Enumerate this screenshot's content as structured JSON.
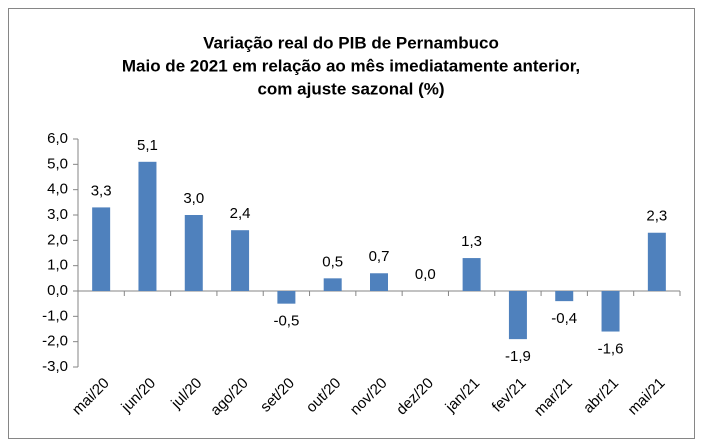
{
  "chart_data": {
    "type": "bar",
    "title": [
      "Variação real do PIB de Pernambuco",
      "Maio de 2021 em relação ao mês imediatamente anterior,",
      "com ajuste sazonal  (%)"
    ],
    "categories": [
      "mai/20",
      "jun/20",
      "jul/20",
      "ago/20",
      "set/20",
      "out/20",
      "nov/20",
      "dez/20",
      "jan/21",
      "fev/21",
      "mar/21",
      "abr/21",
      "mai/21"
    ],
    "values": [
      3.3,
      5.1,
      3.0,
      2.4,
      -0.5,
      0.5,
      0.7,
      0.0,
      1.3,
      -1.9,
      -0.4,
      -1.6,
      2.3
    ],
    "value_labels": [
      "3,3",
      "5,1",
      "3,0",
      "2,4",
      "-0,5",
      "0,5",
      "0,7",
      "0,0",
      "1,3",
      "-1,9",
      "-0,4",
      "-1,6",
      "2,3"
    ],
    "color": "#4f81bd",
    "ylim": [
      -3,
      6
    ],
    "yticks": [
      {
        "value": -3,
        "label": "-3,0"
      },
      {
        "value": -2,
        "label": "-2,0"
      },
      {
        "value": -1,
        "label": "-1,0"
      },
      {
        "value": 0,
        "label": "0,0"
      },
      {
        "value": 1,
        "label": "1,0"
      },
      {
        "value": 2,
        "label": "2,0"
      },
      {
        "value": 3,
        "label": "3,0"
      },
      {
        "value": 4,
        "label": "4,0"
      },
      {
        "value": 5,
        "label": "5,0"
      },
      {
        "value": 6,
        "label": "6,0"
      }
    ],
    "grid": false
  }
}
